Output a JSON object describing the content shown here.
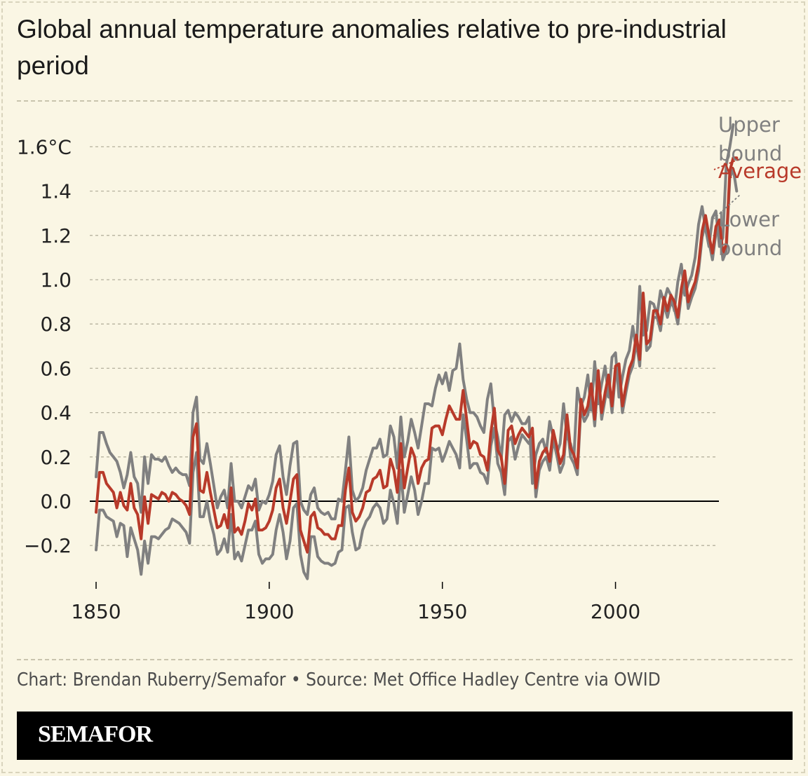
{
  "title": "Global annual temperature anomalies relative to pre-industrial period",
  "credit": "Chart: Brendan Ruberry/Semafor • Source: Met Office Hadley Centre via OWID",
  "brand": "SEMAFOR",
  "colors": {
    "average": "#b83a2a",
    "bounds": "#808080",
    "background": "#faf6e4",
    "grid": "#b5b19e",
    "zero_line": "#000000"
  },
  "chart_data": {
    "type": "line",
    "title": "Global annual temperature anomalies relative to pre-industrial period",
    "xlabel": "",
    "ylabel": "",
    "xlim": [
      1850,
      2024
    ],
    "ylim": [
      -0.3,
      1.7
    ],
    "x_ticks": [
      1850,
      1900,
      1950,
      2000
    ],
    "y_ticks": [
      {
        "value": 1.6,
        "label": "1.6°C"
      },
      {
        "value": 1.4,
        "label": "1.4"
      },
      {
        "value": 1.2,
        "label": "1.2"
      },
      {
        "value": 1.0,
        "label": "1.0"
      },
      {
        "value": 0.8,
        "label": "0.8"
      },
      {
        "value": 0.6,
        "label": "0.6"
      },
      {
        "value": 0.4,
        "label": "0.4"
      },
      {
        "value": 0.2,
        "label": "0.2"
      },
      {
        "value": 0.0,
        "label": "0.0"
      },
      {
        "value": -0.2,
        "label": "−0.2"
      }
    ],
    "x_start": 1850,
    "series": [
      {
        "name": "Average",
        "label": "Average",
        "values": [
          -0.05,
          0.13,
          0.13,
          0.08,
          0.06,
          0.04,
          -0.03,
          0.04,
          -0.02,
          -0.04,
          0.08,
          -0.03,
          -0.06,
          -0.17,
          0.02,
          -0.1,
          0.03,
          0.02,
          0.01,
          0.04,
          0.03,
          0.0,
          0.04,
          0.03,
          0.01,
          0.0,
          -0.02,
          -0.06,
          0.29,
          0.35,
          0.05,
          0.04,
          0.13,
          0.04,
          -0.04,
          -0.12,
          -0.11,
          -0.06,
          -0.12,
          0.06,
          -0.14,
          -0.12,
          -0.15,
          -0.09,
          -0.01,
          -0.04,
          0.01,
          -0.13,
          -0.13,
          -0.12,
          -0.09,
          -0.04,
          0.06,
          0.1,
          -0.03,
          -0.1,
          0.0,
          0.1,
          0.12,
          -0.13,
          -0.18,
          -0.23,
          -0.07,
          -0.05,
          -0.12,
          -0.13,
          -0.15,
          -0.15,
          -0.17,
          -0.17,
          -0.11,
          -0.11,
          0.05,
          0.15,
          -0.05,
          -0.09,
          -0.07,
          -0.03,
          0.04,
          0.05,
          0.1,
          0.11,
          0.14,
          0.06,
          0.07,
          0.19,
          0.14,
          0.04,
          0.26,
          0.06,
          0.15,
          0.24,
          0.2,
          0.08,
          0.15,
          0.18,
          0.19,
          0.33,
          0.34,
          0.34,
          0.3,
          0.37,
          0.43,
          0.4,
          0.37,
          0.37,
          0.5,
          0.37,
          0.24,
          0.27,
          0.26,
          0.21,
          0.2,
          0.14,
          0.31,
          0.42,
          0.23,
          0.2,
          0.08,
          0.32,
          0.34,
          0.26,
          0.3,
          0.33,
          0.31,
          0.29,
          0.33,
          0.06,
          0.18,
          0.22,
          0.24,
          0.18,
          0.32,
          0.25,
          0.17,
          0.21,
          0.39,
          0.24,
          0.21,
          0.15,
          0.46,
          0.39,
          0.43,
          0.53,
          0.37,
          0.59,
          0.4,
          0.49,
          0.57,
          0.43,
          0.61,
          0.62,
          0.43,
          0.52,
          0.6,
          0.64,
          0.75,
          0.64,
          0.94,
          0.71,
          0.73,
          0.86,
          0.86,
          0.8,
          0.92,
          0.86,
          0.93,
          0.9,
          0.83,
          0.96,
          1.04,
          0.9,
          0.95,
          0.99,
          1.07,
          1.22,
          1.29,
          1.2,
          1.12,
          1.24,
          1.27,
          1.12,
          1.16,
          1.49,
          1.55,
          1.55
        ]
      },
      {
        "name": "Upper bound",
        "label": "Upper bound",
        "values": [
          0.11,
          0.31,
          0.31,
          0.26,
          0.22,
          0.2,
          0.18,
          0.13,
          0.06,
          0.12,
          0.22,
          0.11,
          0.08,
          -0.05,
          0.2,
          0.08,
          0.21,
          0.19,
          0.19,
          0.18,
          0.2,
          0.16,
          0.13,
          0.15,
          0.13,
          0.12,
          0.12,
          0.07,
          0.4,
          0.47,
          0.19,
          0.17,
          0.26,
          0.17,
          0.07,
          -0.03,
          0.02,
          0.05,
          -0.03,
          0.17,
          0.0,
          0.0,
          -0.03,
          0.02,
          0.07,
          0.05,
          0.1,
          -0.04,
          0.0,
          -0.01,
          0.03,
          0.09,
          0.21,
          0.25,
          0.11,
          0.03,
          0.16,
          0.26,
          0.27,
          0.0,
          -0.04,
          -0.06,
          0.03,
          0.06,
          -0.03,
          -0.05,
          -0.06,
          -0.05,
          -0.08,
          -0.08,
          0.01,
          0.0,
          0.14,
          0.29,
          0.05,
          0.0,
          0.02,
          0.06,
          0.14,
          0.19,
          0.24,
          0.24,
          0.28,
          0.2,
          0.21,
          0.34,
          0.29,
          0.15,
          0.38,
          0.2,
          0.27,
          0.37,
          0.31,
          0.24,
          0.34,
          0.44,
          0.44,
          0.43,
          0.51,
          0.57,
          0.53,
          0.58,
          0.5,
          0.59,
          0.6,
          0.71,
          0.55,
          0.46,
          0.4,
          0.4,
          0.38,
          0.34,
          0.31,
          0.46,
          0.53,
          0.36,
          0.29,
          0.19,
          0.39,
          0.41,
          0.36,
          0.4,
          0.38,
          0.35,
          0.35,
          0.38,
          0.08,
          0.21,
          0.26,
          0.28,
          0.22,
          0.36,
          0.29,
          0.21,
          0.26,
          0.44,
          0.29,
          0.26,
          0.2,
          0.51,
          0.43,
          0.47,
          0.57,
          0.41,
          0.63,
          0.44,
          0.53,
          0.61,
          0.47,
          0.65,
          0.67,
          0.47,
          0.56,
          0.64,
          0.68,
          0.79,
          0.68,
          0.97,
          0.75,
          0.77,
          0.9,
          0.89,
          0.84,
          0.95,
          0.9,
          0.96,
          0.93,
          0.86,
          0.99,
          1.07,
          0.93,
          0.98,
          1.02,
          1.1,
          1.25,
          1.33,
          1.23,
          1.15,
          1.28,
          1.31,
          1.15,
          1.19,
          1.52,
          1.6,
          1.7
        ]
      },
      {
        "name": "Lower bound",
        "label": "Lower bound",
        "values": [
          -0.22,
          -0.04,
          -0.04,
          -0.07,
          -0.08,
          -0.09,
          -0.16,
          -0.1,
          -0.11,
          -0.25,
          -0.12,
          -0.17,
          -0.22,
          -0.33,
          -0.18,
          -0.28,
          -0.16,
          -0.16,
          -0.17,
          -0.15,
          -0.13,
          -0.12,
          -0.08,
          -0.09,
          -0.1,
          -0.12,
          -0.14,
          -0.19,
          0.13,
          0.22,
          -0.07,
          -0.07,
          0.0,
          -0.09,
          -0.15,
          -0.24,
          -0.22,
          -0.17,
          -0.23,
          -0.06,
          -0.26,
          -0.23,
          -0.27,
          -0.2,
          -0.13,
          -0.13,
          -0.09,
          -0.24,
          -0.28,
          -0.26,
          -0.26,
          -0.24,
          -0.13,
          -0.06,
          -0.14,
          -0.26,
          -0.18,
          -0.03,
          -0.01,
          -0.24,
          -0.32,
          -0.35,
          -0.16,
          -0.16,
          -0.25,
          -0.27,
          -0.28,
          -0.28,
          -0.29,
          -0.28,
          -0.23,
          -0.22,
          -0.03,
          -0.02,
          -0.14,
          -0.22,
          -0.21,
          -0.13,
          -0.09,
          -0.07,
          -0.03,
          -0.01,
          -0.03,
          -0.1,
          -0.08,
          0.05,
          -0.01,
          -0.1,
          0.14,
          -0.05,
          0.03,
          0.11,
          0.05,
          -0.06,
          0.0,
          0.08,
          0.08,
          0.24,
          0.23,
          0.24,
          0.18,
          0.22,
          0.27,
          0.24,
          0.21,
          0.15,
          0.39,
          0.28,
          0.15,
          0.17,
          0.17,
          0.13,
          0.12,
          0.08,
          0.25,
          0.33,
          0.17,
          0.13,
          0.03,
          0.27,
          0.29,
          0.19,
          0.25,
          0.3,
          0.28,
          0.26,
          0.29,
          0.02,
          0.14,
          0.18,
          0.2,
          0.14,
          0.28,
          0.21,
          0.13,
          0.17,
          0.35,
          0.2,
          0.17,
          0.12,
          0.42,
          0.36,
          0.39,
          0.5,
          0.34,
          0.56,
          0.37,
          0.46,
          0.54,
          0.4,
          0.58,
          0.59,
          0.4,
          0.49,
          0.57,
          0.61,
          0.72,
          0.61,
          0.91,
          0.68,
          0.7,
          0.83,
          0.83,
          0.77,
          0.89,
          0.83,
          0.9,
          0.87,
          0.8,
          0.93,
          1.01,
          0.87,
          0.92,
          0.96,
          1.04,
          1.19,
          1.26,
          1.17,
          1.09,
          1.21,
          1.24,
          1.09,
          1.13,
          1.46,
          1.5,
          1.4
        ]
      }
    ]
  }
}
